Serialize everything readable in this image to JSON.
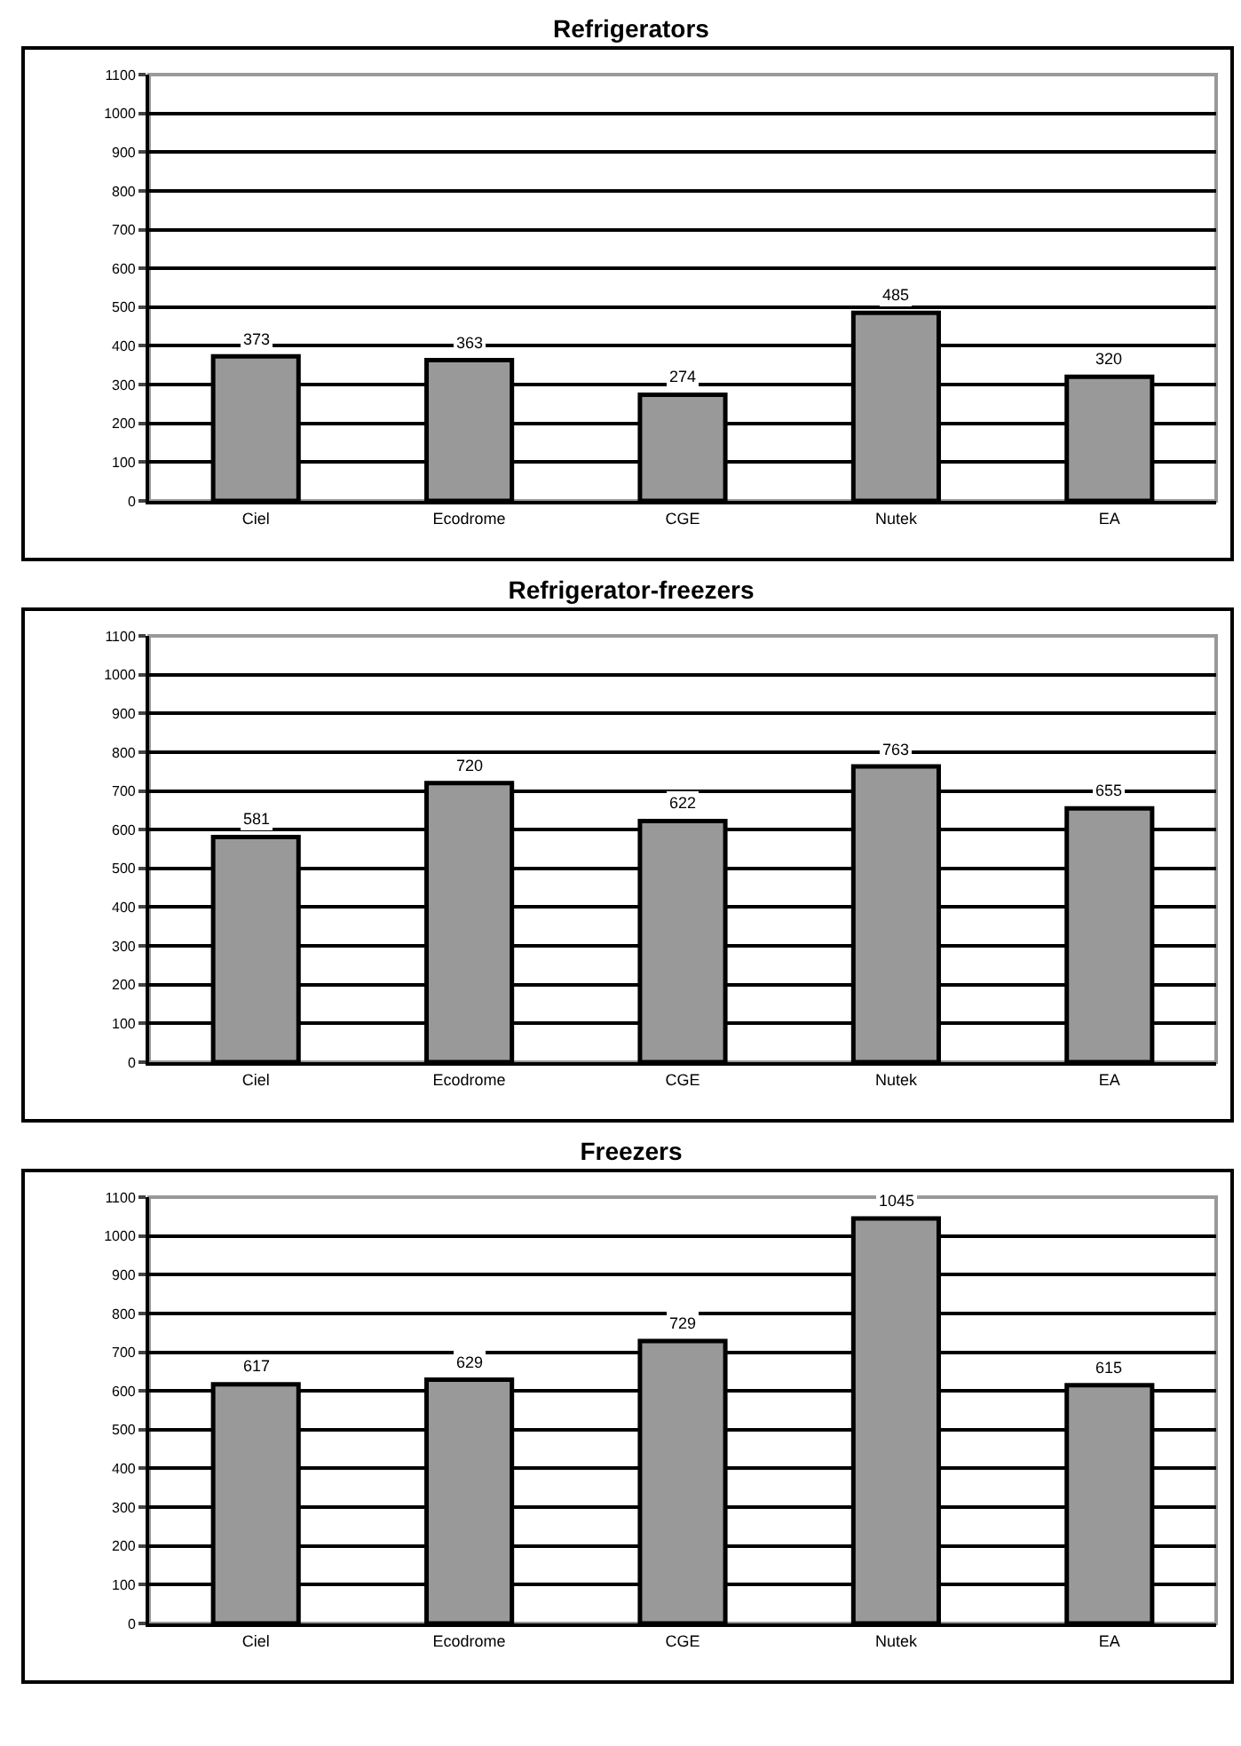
{
  "chart_data": [
    {
      "type": "bar",
      "title": "Refrigerators",
      "categories": [
        "Ciel",
        "Ecodrome",
        "CGE",
        "Nutek",
        "EA"
      ],
      "values": [
        373,
        363,
        274,
        485,
        320
      ],
      "color": "#999999",
      "ylim": [
        0,
        1100
      ],
      "yticks": [
        0,
        100,
        200,
        300,
        400,
        500,
        600,
        700,
        800,
        900,
        1000,
        1100
      ],
      "grid": "y",
      "data_labels": true
    },
    {
      "type": "bar",
      "title": "Refrigerator-freezers",
      "categories": [
        "Ciel",
        "Ecodrome",
        "CGE",
        "Nutek",
        "EA"
      ],
      "values": [
        581,
        720,
        622,
        763,
        655
      ],
      "color": "#999999",
      "ylim": [
        0,
        1100
      ],
      "yticks": [
        0,
        100,
        200,
        300,
        400,
        500,
        600,
        700,
        800,
        900,
        1000,
        1100
      ],
      "grid": "y",
      "data_labels": true
    },
    {
      "type": "bar",
      "title": "Freezers",
      "categories": [
        "Ciel",
        "Ecodrome",
        "CGE",
        "Nutek",
        "EA"
      ],
      "values": [
        617,
        629,
        729,
        1045,
        615
      ],
      "color": "#999999",
      "ylim": [
        0,
        1100
      ],
      "yticks": [
        0,
        100,
        200,
        300,
        400,
        500,
        600,
        700,
        800,
        900,
        1000,
        1100
      ],
      "grid": "y",
      "data_labels": true
    }
  ]
}
